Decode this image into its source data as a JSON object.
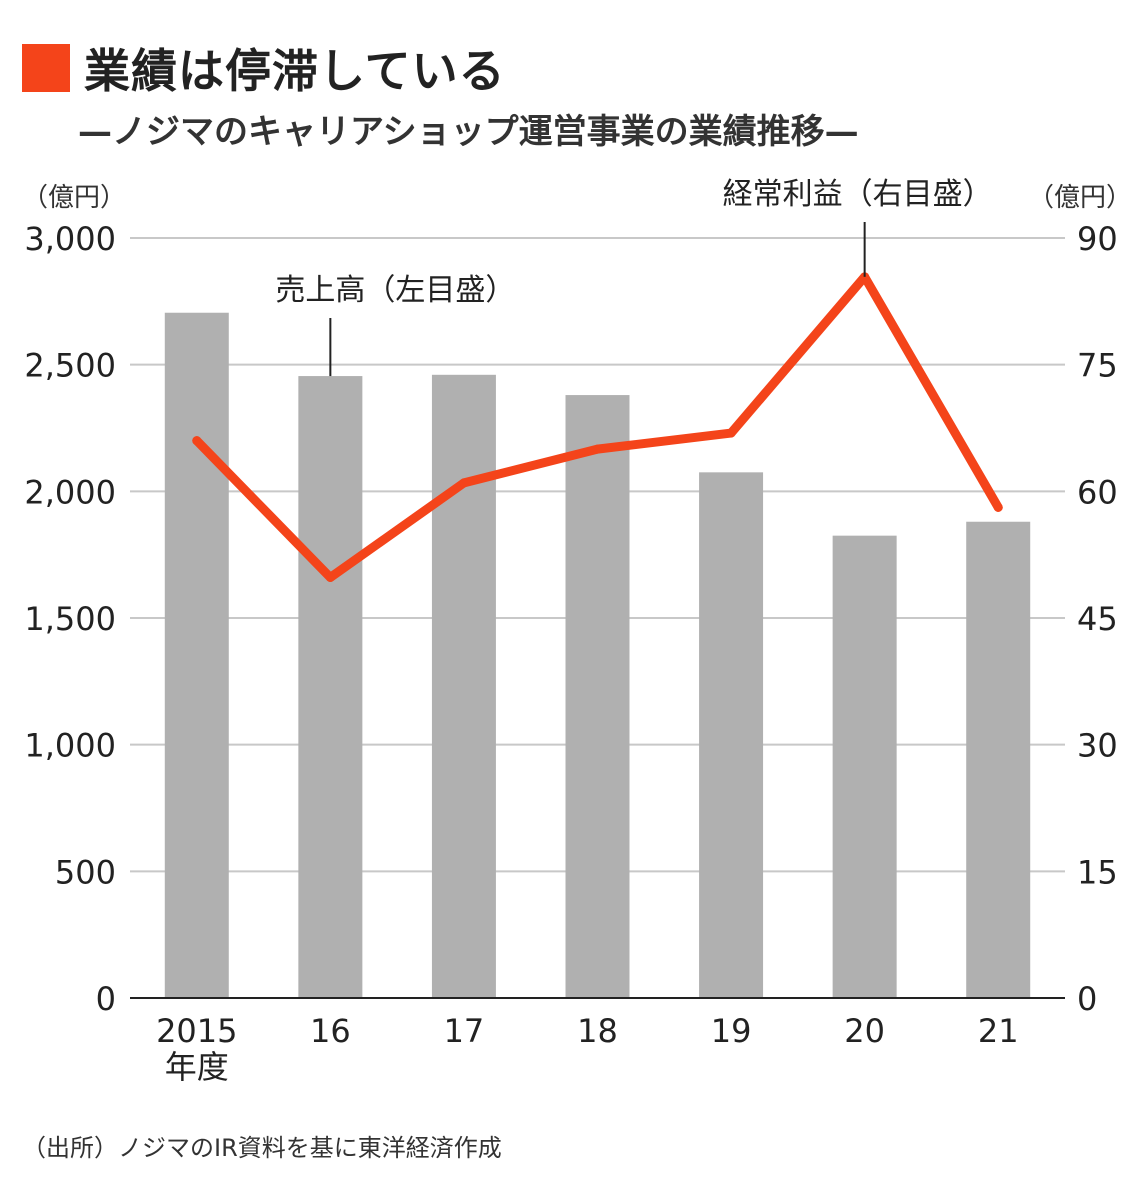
{
  "header": {
    "title": "業績は停滞している",
    "subtitle": "—ノジマのキャリアショップ運営事業の業績推移—"
  },
  "footer": {
    "source": "（出所）ノジマのIR資料を基に東洋経済作成"
  },
  "colors": {
    "accent": "#f4441a",
    "bar": "#b0b0b0",
    "grid": "#c8c8c8",
    "axis": "#222222"
  },
  "chart_data": {
    "type": "bar",
    "categories": [
      "2015\n年度",
      "16",
      "17",
      "18",
      "19",
      "20",
      "21"
    ],
    "series": [
      {
        "name": "売上高（左目盛）",
        "type": "bar",
        "axis": "left",
        "values": [
          2705,
          2455,
          2460,
          2380,
          2075,
          1825,
          1880
        ]
      },
      {
        "name": "経常利益（右目盛）",
        "type": "line",
        "axis": "right",
        "values": [
          66.0,
          49.8,
          61.0,
          65.0,
          66.9,
          85.4,
          58.1
        ]
      }
    ],
    "y_left": {
      "label": "（億円）",
      "min": 0,
      "max": 3000,
      "ticks": [
        "0",
        "500",
        "1,000",
        "1,500",
        "2,000",
        "2,500",
        "3,000"
      ]
    },
    "y_right": {
      "label": "（億円）",
      "min": 0,
      "max": 90,
      "ticks": [
        "0",
        "15",
        "30",
        "45",
        "60",
        "75",
        "90"
      ]
    },
    "grid": true
  }
}
